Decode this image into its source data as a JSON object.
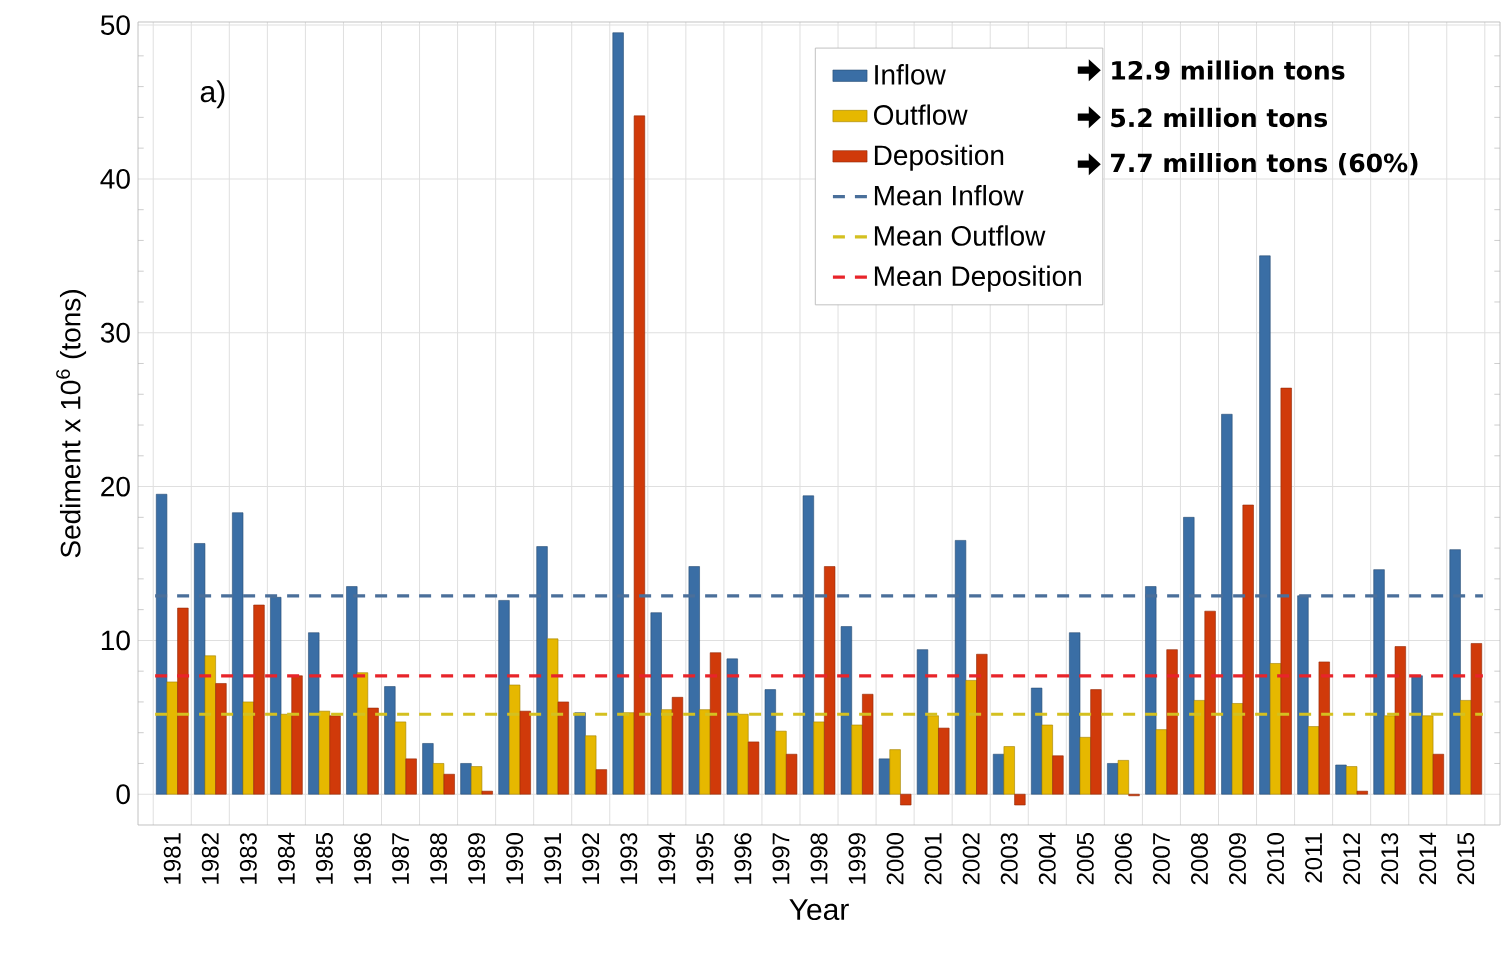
{
  "chart_data": {
    "type": "bar",
    "xlabel": "Year",
    "ylabel": "Sediment x 10$^{6}$ (tons)",
    "categories": [
      "1981",
      "1982",
      "1983",
      "1984",
      "1985",
      "1986",
      "1987",
      "1988",
      "1989",
      "1990",
      "1991",
      "1992",
      "1993",
      "1994",
      "1995",
      "1996",
      "1997",
      "1998",
      "1999",
      "2000",
      "2001",
      "2002",
      "2003",
      "2004",
      "2005",
      "2006",
      "2007",
      "2008",
      "2009",
      "2010",
      "2011",
      "2012",
      "2013",
      "2014",
      "2015"
    ],
    "series": [
      {
        "name": "Inflow",
        "color": "#3a6ea5",
        "values": [
          19.5,
          16.3,
          18.3,
          12.8,
          10.5,
          13.5,
          7.0,
          3.3,
          2.0,
          12.6,
          16.1,
          5.3,
          49.5,
          11.8,
          14.8,
          8.8,
          6.8,
          19.4,
          10.9,
          2.3,
          9.4,
          16.5,
          2.6,
          6.9,
          10.5,
          2.0,
          13.5,
          18.0,
          24.7,
          35.0,
          12.9,
          1.9,
          14.6,
          7.7,
          15.9
        ]
      },
      {
        "name": "Outflow",
        "color": "#e6b800",
        "values": [
          7.3,
          9.0,
          6.0,
          5.2,
          5.4,
          7.9,
          4.7,
          2.0,
          1.8,
          7.1,
          10.1,
          3.8,
          5.3,
          5.5,
          5.5,
          5.2,
          4.1,
          4.7,
          4.5,
          2.9,
          5.1,
          7.4,
          3.1,
          4.5,
          3.7,
          2.2,
          4.2,
          6.1,
          5.9,
          8.5,
          4.4,
          1.8,
          5.1,
          5.1,
          6.1
        ]
      },
      {
        "name": "Deposition",
        "color": "#d03a0a",
        "values": [
          12.1,
          7.2,
          12.3,
          7.7,
          5.1,
          5.6,
          2.3,
          1.3,
          0.2,
          5.4,
          6.0,
          1.6,
          44.1,
          6.3,
          9.2,
          3.4,
          2.6,
          14.8,
          6.5,
          -0.7,
          4.3,
          9.1,
          -0.7,
          2.5,
          6.8,
          -0.1,
          9.4,
          11.9,
          18.8,
          26.4,
          8.6,
          0.2,
          9.6,
          2.6,
          9.8
        ]
      }
    ],
    "ref_lines": [
      {
        "axis": "y",
        "value": 12.9,
        "label": "Mean Inflow",
        "color": "#4a6f9a",
        "line_style": "dashed"
      },
      {
        "axis": "y",
        "value": 5.2,
        "label": "Mean Outflow",
        "color": "#d4c020",
        "line_style": "dashed"
      },
      {
        "axis": "y",
        "value": 7.7,
        "label": "Mean Deposition",
        "color": "#e8242a",
        "line_style": "dashed"
      }
    ],
    "annotations": [
      "a)",
      "12.9 million tons",
      "5.2 million tons",
      "7.7 million tons (60%)"
    ],
    "ylim": [
      -2,
      50.2
    ],
    "yticks": [
      0,
      10,
      20,
      30,
      40,
      50
    ],
    "grid": true,
    "legend": "top right"
  }
}
